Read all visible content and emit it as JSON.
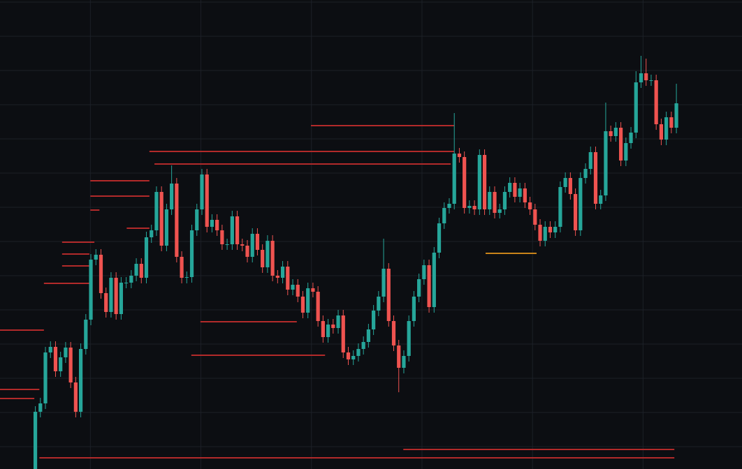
{
  "chart_data": {
    "type": "candlestick",
    "up_color": "#26a69a",
    "down_color": "#ef5350",
    "level_color": "#b22a2a",
    "grid": true,
    "xlim": [
      -7,
      140
    ],
    "ylim": [
      0,
      672
    ],
    "xticks": [
      10.9,
      32.8,
      54.7,
      76.6,
      98.5,
      120.4
    ],
    "yticks": [
      32,
      81,
      130,
      179,
      228,
      277,
      326,
      375,
      424,
      473,
      522,
      571,
      620,
      669
    ],
    "open": [
      0,
      82,
      94,
      167,
      175,
      140,
      160,
      174,
      124,
      82,
      172,
      214,
      300,
      307,
      252,
      225,
      274,
      222,
      267,
      267,
      277,
      294,
      274,
      332,
      342,
      397,
      320,
      372,
      409,
      304,
      274,
      275,
      342,
      372,
      422,
      347,
      357,
      342,
      322,
      322,
      362,
      322,
      320,
      304,
      337,
      314,
      289,
      327,
      277,
      274,
      290,
      257,
      264,
      247,
      224,
      259,
      254,
      212,
      189,
      207,
      202,
      220,
      167,
      157,
      162,
      172,
      182,
      200,
      227,
      247,
      287,
      212,
      177,
      145,
      162,
      212,
      247,
      272,
      292,
      232,
      310,
      352,
      374,
      380,
      452,
      447,
      374,
      377,
      372,
      450,
      372,
      397,
      367,
      372,
      397,
      410,
      390,
      402,
      382,
      372,
      350,
      327,
      347,
      339,
      347,
      404,
      417,
      394,
      342,
      417,
      430,
      454,
      380,
      392,
      484,
      477,
      489,
      442,
      467,
      482,
      554,
      567,
      557,
      557,
      494,
      472,
      504,
      489
    ],
    "high": [
      90,
      102,
      175,
      183,
      183,
      168,
      182,
      182,
      132,
      180,
      222,
      308,
      315,
      315,
      260,
      282,
      282,
      275,
      275,
      285,
      302,
      302,
      340,
      350,
      405,
      405,
      380,
      435,
      417,
      312,
      283,
      350,
      380,
      430,
      430,
      365,
      365,
      350,
      330,
      370,
      370,
      330,
      328,
      345,
      345,
      322,
      335,
      335,
      285,
      298,
      298,
      272,
      272,
      255,
      267,
      267,
      262,
      220,
      215,
      215,
      228,
      228,
      175,
      170,
      180,
      190,
      208,
      235,
      255,
      330,
      295,
      220,
      185,
      170,
      220,
      255,
      280,
      300,
      300,
      318,
      360,
      382,
      388,
      510,
      460,
      455,
      385,
      385,
      458,
      458,
      405,
      405,
      380,
      405,
      418,
      418,
      410,
      410,
      390,
      380,
      358,
      355,
      355,
      355,
      412,
      425,
      425,
      402,
      425,
      438,
      462,
      462,
      400,
      525,
      492,
      497,
      497,
      475,
      490,
      570,
      592,
      588,
      565,
      565,
      502,
      512,
      512,
      552
    ],
    "low": [
      0,
      74,
      86,
      159,
      132,
      132,
      152,
      116,
      74,
      74,
      164,
      206,
      292,
      244,
      217,
      217,
      214,
      214,
      259,
      259,
      269,
      266,
      266,
      324,
      334,
      312,
      312,
      364,
      296,
      266,
      266,
      267,
      334,
      364,
      339,
      339,
      334,
      314,
      314,
      314,
      314,
      312,
      296,
      296,
      306,
      281,
      281,
      269,
      266,
      266,
      249,
      249,
      239,
      216,
      216,
      246,
      204,
      181,
      181,
      194,
      194,
      159,
      149,
      149,
      154,
      164,
      174,
      192,
      219,
      239,
      204,
      169,
      110,
      137,
      154,
      204,
      239,
      264,
      224,
      224,
      302,
      344,
      366,
      372,
      439,
      366,
      366,
      364,
      364,
      364,
      364,
      359,
      359,
      364,
      389,
      382,
      382,
      374,
      364,
      342,
      319,
      319,
      331,
      331,
      339,
      396,
      386,
      334,
      334,
      409,
      422,
      372,
      372,
      384,
      469,
      469,
      434,
      434,
      459,
      474,
      546,
      549,
      549,
      486,
      464,
      464,
      481,
      481
    ],
    "close": [
      82,
      94,
      167,
      175,
      140,
      160,
      174,
      124,
      82,
      172,
      214,
      300,
      307,
      252,
      225,
      274,
      222,
      267,
      267,
      277,
      294,
      274,
      332,
      342,
      397,
      320,
      372,
      409,
      304,
      274,
      275,
      342,
      372,
      422,
      347,
      357,
      342,
      322,
      322,
      362,
      322,
      320,
      304,
      337,
      314,
      289,
      327,
      277,
      274,
      290,
      257,
      264,
      247,
      224,
      259,
      254,
      212,
      189,
      207,
      202,
      220,
      167,
      157,
      162,
      172,
      182,
      200,
      227,
      247,
      287,
      212,
      177,
      145,
      162,
      212,
      247,
      272,
      292,
      232,
      310,
      352,
      374,
      380,
      452,
      447,
      374,
      377,
      372,
      450,
      372,
      397,
      367,
      372,
      397,
      410,
      390,
      402,
      382,
      372,
      350,
      327,
      347,
      339,
      347,
      404,
      417,
      394,
      342,
      417,
      430,
      454,
      380,
      392,
      484,
      477,
      489,
      442,
      467,
      482,
      554,
      567,
      557,
      557,
      494,
      472,
      504,
      489,
      524
    ],
    "levels": [
      {
        "price": 492,
        "start": 54.6,
        "end": 83.0
      },
      {
        "price": 455,
        "start": 22.6,
        "end": 83.0
      },
      {
        "price": 437,
        "start": 23.6,
        "end": 82.3
      },
      {
        "price": 413,
        "start": 10.9,
        "end": 22.6
      },
      {
        "price": 391,
        "start": 10.9,
        "end": 22.6
      },
      {
        "price": 371,
        "start": 10.9,
        "end": 12.7
      },
      {
        "price": 345,
        "start": 18.1,
        "end": 22.6
      },
      {
        "price": 325,
        "start": 5.3,
        "end": 11.7
      },
      {
        "price": 308,
        "start": 5.3,
        "end": 10.7
      },
      {
        "price": 291,
        "start": 5.3,
        "end": 10.7
      },
      {
        "price": 266,
        "start": 1.7,
        "end": 10.7
      },
      {
        "price": 211,
        "start": 32.7,
        "end": 51.8
      },
      {
        "price": 199,
        "start": -7,
        "end": 1.7
      },
      {
        "price": 163,
        "start": 30.9,
        "end": 57.4
      },
      {
        "price": 114,
        "start": -7,
        "end": 0.8
      },
      {
        "price": 101,
        "start": -7,
        "end": -0.2
      },
      {
        "price": 28,
        "start": 72.9,
        "end": 126.6
      },
      {
        "price": 16,
        "start": 0.8,
        "end": 126.6
      },
      {
        "price": 309,
        "start": 89.2,
        "end": 99.3,
        "color": "#c8841a"
      }
    ]
  }
}
